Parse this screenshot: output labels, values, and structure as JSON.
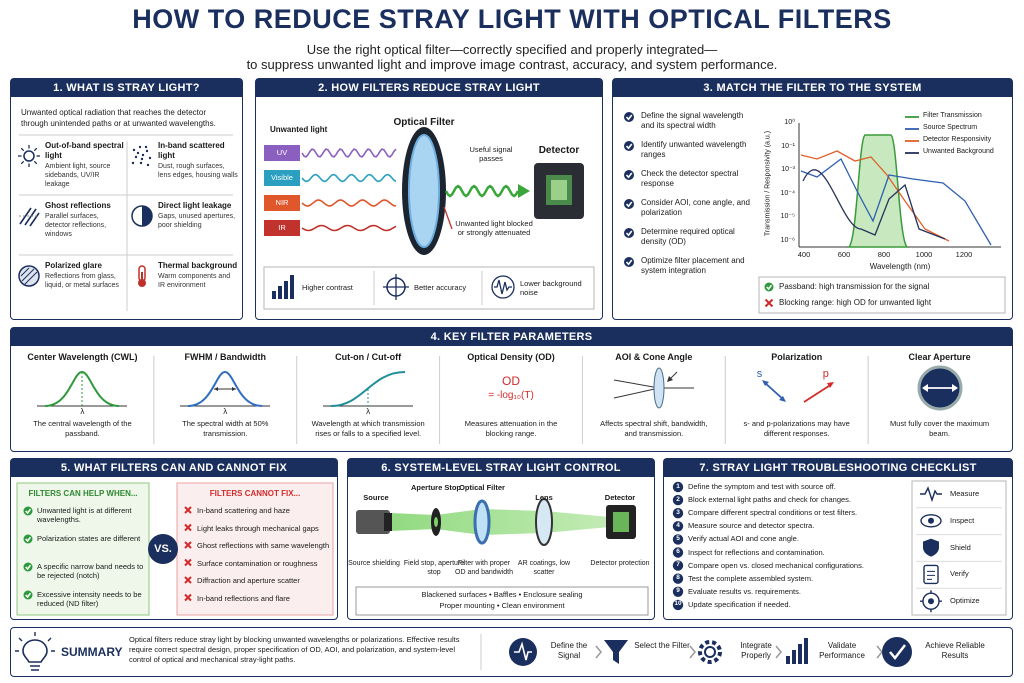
{
  "header": {
    "title": "HOW TO REDUCE STRAY LIGHT WITH OPTICAL FILTERS",
    "subtitle": [
      "Use the right optical filter—correctly specified and properly integrated—",
      "to suppress unwanted light and improve image contrast, accuracy, and system performance."
    ]
  },
  "s1": {
    "title": "1. WHAT IS STRAY LIGHT?",
    "intro": "Unwanted optical radiation that reaches the detector through unintended paths or at unwanted wavelengths.",
    "items": [
      {
        "title": "Out-of-band spectral light",
        "desc": "Ambient light, source sidebands, UV/IR leakage"
      },
      {
        "title": "In-band scattered light",
        "desc": "Dust, rough surfaces, lens edges, housing walls"
      },
      {
        "title": "Ghost reflections",
        "desc": "Parallel surfaces, detector reflections, windows"
      },
      {
        "title": "Direct light leakage",
        "desc": "Gaps, unused apertures, poor shielding"
      },
      {
        "title": "Polarized glare",
        "desc": "Reflections from glass, liquid, or metal surfaces"
      },
      {
        "title": "Thermal background",
        "desc": "Warm components and IR environment"
      }
    ]
  },
  "s2": {
    "title": "2. HOW FILTERS REDUCE STRAY LIGHT",
    "unwanted_label": "Unwanted light",
    "bands": [
      "UV",
      "Visible",
      "NIR",
      "IR"
    ],
    "filter_label": "Optical Filter",
    "passed": "Useful signal passes",
    "blocked": "Unwanted light blocked or strongly attenuated",
    "detector": "Detector",
    "benefits": [
      "Higher contrast",
      "Better accuracy",
      "Lower background noise"
    ]
  },
  "s3": {
    "title": "3. MATCH THE FILTER TO THE SYSTEM",
    "steps": [
      "Define the signal wavelength and its spectral width",
      "Identify unwanted wavelength ranges",
      "Check the detector spectral response",
      "Consider AOI, cone angle, and polarization",
      "Determine required optical density (OD)",
      "Optimize filter placement and system integration"
    ],
    "legend": [
      "Filter Transmission",
      "Source Spectrum",
      "Detector Responsivity",
      "Unwanted Background"
    ],
    "y_ticks": [
      "10⁰",
      "10⁻¹",
      "10⁻³",
      "10⁻⁴",
      "10⁻⁵",
      "10⁻⁶"
    ],
    "x_ticks": [
      "400",
      "600",
      "800",
      "1000",
      "1200"
    ],
    "x_label": "Wavelength (nm)",
    "y_label": "Transmission / Responsivity (a.u.)",
    "pass_note": "Passband: high transmission for the signal",
    "block_note": "Blocking range: high OD for unwanted light"
  },
  "s4": {
    "title": "4. KEY FILTER PARAMETERS",
    "params": [
      {
        "name": "Center Wavelength (CWL)",
        "glyph": "λ",
        "desc": "The central wavelength of the passband."
      },
      {
        "name": "FWHM / Bandwidth",
        "glyph": "λ",
        "desc": "The spectral width at 50% transmission."
      },
      {
        "name": "Cut-on / Cut-off",
        "glyph": "λ",
        "desc": "Wavelength at which transmission rises or falls to a specified level."
      },
      {
        "name": "Optical Density (OD)",
        "formula": [
          "OD",
          "= -log₁₀(T)"
        ],
        "desc": "Measures attenuation in the blocking range."
      },
      {
        "name": "AOI & Cone Angle",
        "desc": "Affects spectral shift, bandwidth, and transmission."
      },
      {
        "name": "Polarization",
        "labels": [
          "s",
          "p"
        ],
        "desc": "s- and p-polarizations may have different responses."
      },
      {
        "name": "Clear Aperture",
        "desc": "Must fully cover the maximum beam."
      }
    ]
  },
  "s5": {
    "title": "5. WHAT FILTERS CAN AND CANNOT FIX",
    "can_title": "FILTERS CAN HELP WHEN...",
    "can": [
      "Unwanted light is at different wavelengths.",
      "Polarization states are different",
      "A specific narrow band needs to be rejected (notch)",
      "Excessive intensity needs to be reduced (ND filter)"
    ],
    "vs": "VS.",
    "cannot_title": "FILTERS CANNOT FIX...",
    "cannot": [
      "In-band scattering and haze",
      "Light leaks through mechanical gaps",
      "Ghost reflections with same wavelength",
      "Surface contamination or roughness",
      "Diffraction and aperture scatter",
      "In-band reflections and flare"
    ]
  },
  "s6": {
    "title": "6. SYSTEM-LEVEL STRAY LIGHT CONTROL",
    "components": [
      {
        "name": "Source",
        "note": "Source shielding"
      },
      {
        "name": "Aperture Stop",
        "note": "Field stop, aperture stop"
      },
      {
        "name": "Optical Filter",
        "note": "Filter with proper OD and bandwidth"
      },
      {
        "name": "Lens",
        "note": "AR coatings, low scatter"
      },
      {
        "name": "Detector",
        "note": "Detector protection"
      }
    ],
    "footer": [
      "Blackened surfaces • Baffles • Enclosure sealing",
      "Proper mounting • Clean environment"
    ]
  },
  "s7": {
    "title": "7. STRAY LIGHT TROUBLESHOOTING CHECKLIST",
    "steps": [
      {
        "n": 1,
        "text": "Define the symptom and test with source off."
      },
      {
        "n": 2,
        "text": "Block external light paths and check for changes."
      },
      {
        "n": 3,
        "text": "Compare different spectral conditions or test filters."
      },
      {
        "n": 4,
        "text": "Measure source and detector spectra."
      },
      {
        "n": 5,
        "text": "Verify actual AOI and cone angle."
      },
      {
        "n": 6,
        "text": "Inspect for reflections and contamination."
      },
      {
        "n": 7,
        "text": "Compare open vs. closed mechanical configurations."
      },
      {
        "n": 8,
        "text": "Test the complete assembled system."
      },
      {
        "n": 9,
        "text": "Evaluate results vs. requirements."
      },
      {
        "n": 10,
        "text": "Update specification if needed."
      }
    ],
    "actions": [
      "Measure",
      "Inspect",
      "Shield",
      "Verify",
      "Optimize"
    ]
  },
  "summary": {
    "title": "SUMMARY",
    "text": "Optical filters reduce stray light by blocking unwanted wavelengths or polarizations. Effective results require correct spectral design, proper specification of OD, AOI, and polarization, and system-level control of optical and mechanical stray-light paths.",
    "flow": [
      "Define the Signal",
      "Select the Filter",
      "Integrate Properly",
      "Validate Performance",
      "Achieve Reliable Results"
    ]
  }
}
